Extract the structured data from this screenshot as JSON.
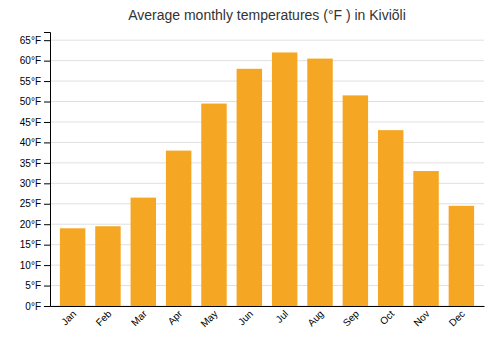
{
  "chart_data": {
    "type": "bar",
    "title": "Average monthly temperatures (°F ) in Kiviõli",
    "categories": [
      "Jan",
      "Feb",
      "Mar",
      "Apr",
      "May",
      "Jun",
      "Jul",
      "Aug",
      "Sep",
      "Oct",
      "Nov",
      "Dec"
    ],
    "values": [
      19,
      19.5,
      26.5,
      38,
      49.5,
      58,
      62,
      60.5,
      51.5,
      43,
      33,
      24.5
    ],
    "color": "#F5A623",
    "ylim": [
      0,
      67
    ],
    "yticks": [
      {
        "value": 0,
        "label": "0°F"
      },
      {
        "value": 5,
        "label": "5°F"
      },
      {
        "value": 10,
        "label": "10°F"
      },
      {
        "value": 15,
        "label": "15°F"
      },
      {
        "value": 20,
        "label": "20°F"
      },
      {
        "value": 25,
        "label": "25°F"
      },
      {
        "value": 30,
        "label": "30°F"
      },
      {
        "value": 35,
        "label": "35°F"
      },
      {
        "value": 40,
        "label": "40°F"
      },
      {
        "value": 45,
        "label": "45°F"
      },
      {
        "value": 50,
        "label": "50°F"
      },
      {
        "value": 55,
        "label": "55°F"
      },
      {
        "value": 60,
        "label": "60°F"
      },
      {
        "value": 65,
        "label": "65°F"
      }
    ],
    "grid": true
  }
}
